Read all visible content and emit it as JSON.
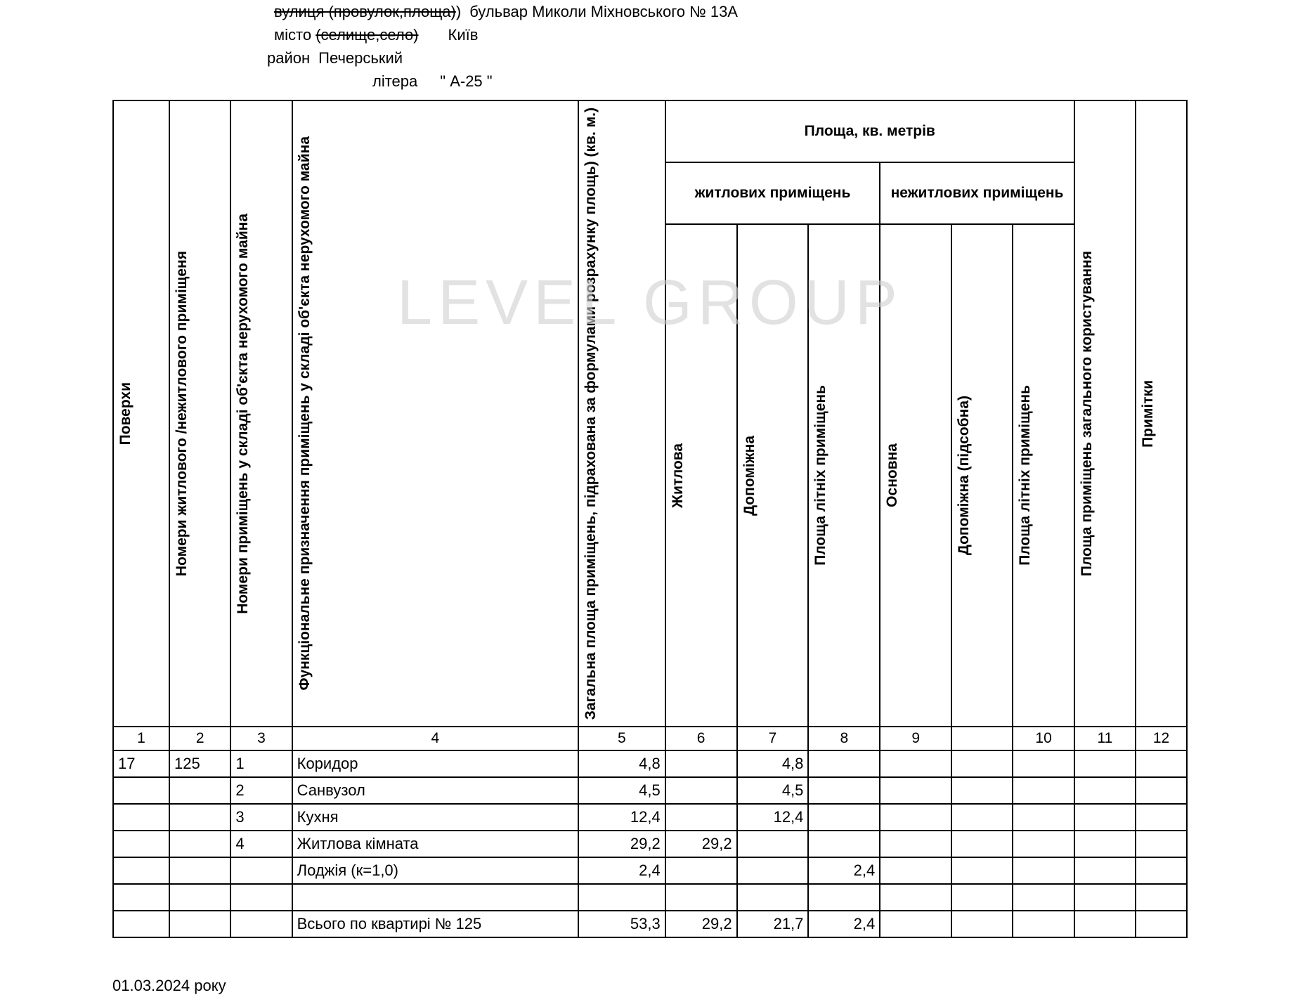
{
  "header": {
    "street_label_strike": "вулиця (провулок,площа)",
    "street_value": "бульвар Миколи Міхновського № 13А",
    "city_label": "місто",
    "city_strike": "(селище,село)",
    "city_value": "Київ",
    "district_label": "район",
    "district_value": "Печерський",
    "litera_label": "літера",
    "litera_value": "\" А-25 \""
  },
  "table": {
    "columns": {
      "c1": "Поверхи",
      "c2": "Номери житлового /нежитлового приміщеня",
      "c3": "Номери приміщень у складі об'єкта нерухомого майна",
      "c4": "Функціональне призначення приміщень у складі об'єкта нерухомого майна",
      "c5": "Загальна площа приміщень, підрахована за формулами розрахунку площь) (кв. м.)",
      "group_area": "Площа, кв. метрів",
      "group_living": "житлових приміщень",
      "group_nonliving": "нежитлових приміщень",
      "c6": "Житлова",
      "c7": "Допоміжна",
      "c8": "Площа літніх приміщень",
      "c9": "Основна",
      "c9b": "Допоміжна (підсобна)",
      "c10": "Площа літніх приміщень",
      "c11": "Площа приміщень загального користування",
      "c12": "Примітки"
    },
    "col_nums": [
      "1",
      "2",
      "3",
      "4",
      "5",
      "6",
      "7",
      "8",
      "9",
      "",
      "10",
      "11",
      "12"
    ],
    "rows": [
      {
        "c1": "17",
        "c2": "125",
        "c3": "1",
        "c4": "Коридор",
        "c5": "4,8",
        "c6": "",
        "c7": "4,8",
        "c8": "",
        "c9": "",
        "c9b": "",
        "c10": "",
        "c11": "",
        "c12": ""
      },
      {
        "c1": "",
        "c2": "",
        "c3": "2",
        "c4": "Санвузол",
        "c5": "4,5",
        "c6": "",
        "c7": "4,5",
        "c8": "",
        "c9": "",
        "c9b": "",
        "c10": "",
        "c11": "",
        "c12": ""
      },
      {
        "c1": "",
        "c2": "",
        "c3": "3",
        "c4": "Кухня",
        "c5": "12,4",
        "c6": "",
        "c7": "12,4",
        "c8": "",
        "c9": "",
        "c9b": "",
        "c10": "",
        "c11": "",
        "c12": ""
      },
      {
        "c1": "",
        "c2": "",
        "c3": "4",
        "c4": "Житлова кімната",
        "c5": "29,2",
        "c6": "29,2",
        "c7": "",
        "c8": "",
        "c9": "",
        "c9b": "",
        "c10": "",
        "c11": "",
        "c12": ""
      },
      {
        "c1": "",
        "c2": "",
        "c3": "",
        "c4": "Лоджія  (к=1,0)",
        "c5": "2,4",
        "c6": "",
        "c7": "",
        "c8": "2,4",
        "c9": "",
        "c9b": "",
        "c10": "",
        "c11": "",
        "c12": ""
      },
      {
        "c1": "",
        "c2": "",
        "c3": "",
        "c4": "",
        "c5": "",
        "c6": "",
        "c7": "",
        "c8": "",
        "c9": "",
        "c9b": "",
        "c10": "",
        "c11": "",
        "c12": ""
      },
      {
        "c1": "",
        "c2": "",
        "c3": "",
        "c4": "Всього по квартирі № 125",
        "c5": "53,3",
        "c6": "29,2",
        "c7": "21,7",
        "c8": "2,4",
        "c9": "",
        "c9b": "",
        "c10": "",
        "c11": "",
        "c12": ""
      }
    ]
  },
  "footer": {
    "date": "01.03.2024 року"
  },
  "watermark": "LEVEL GROUP",
  "styling": {
    "border_color": "#000000",
    "background": "#ffffff",
    "text_color": "#000000",
    "watermark_color": "#d0d0d0",
    "header_fontsize": 22,
    "cell_fontsize": 21,
    "watermark_fontsize": 90
  }
}
